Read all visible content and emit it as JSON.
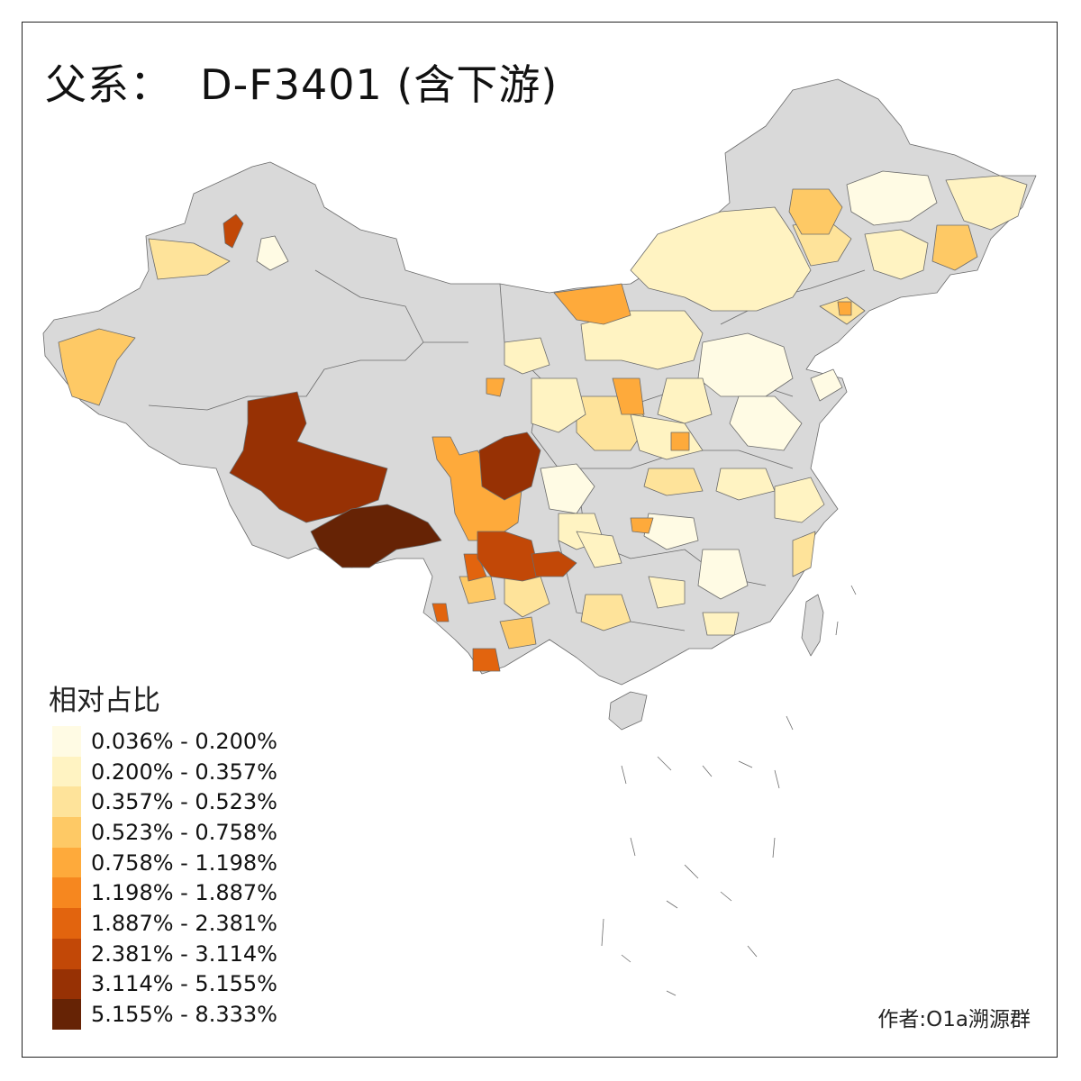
{
  "title": "父系：  D-F3401 (含下游)",
  "legend": {
    "title": "相对占比",
    "no_data_color": "#d9d9d9",
    "classes": [
      {
        "label": "0.036% - 0.200%",
        "color": "#fffbe4"
      },
      {
        "label": "0.200% - 0.357%",
        "color": "#fff3c2"
      },
      {
        "label": "0.357% - 0.523%",
        "color": "#fee39a"
      },
      {
        "label": "0.523% - 0.758%",
        "color": "#fec965"
      },
      {
        "label": "0.758% - 1.198%",
        "color": "#feaa3b"
      },
      {
        "label": "1.198% - 1.887%",
        "color": "#f6871f"
      },
      {
        "label": "1.887% - 2.381%",
        "color": "#e2640e"
      },
      {
        "label": "2.381% - 3.114%",
        "color": "#c24807"
      },
      {
        "label": "3.114% - 5.155%",
        "color": "#973104"
      },
      {
        "label": "5.155% - 8.333%",
        "color": "#662305"
      }
    ]
  },
  "credit": "作者:O1a溯源群"
}
